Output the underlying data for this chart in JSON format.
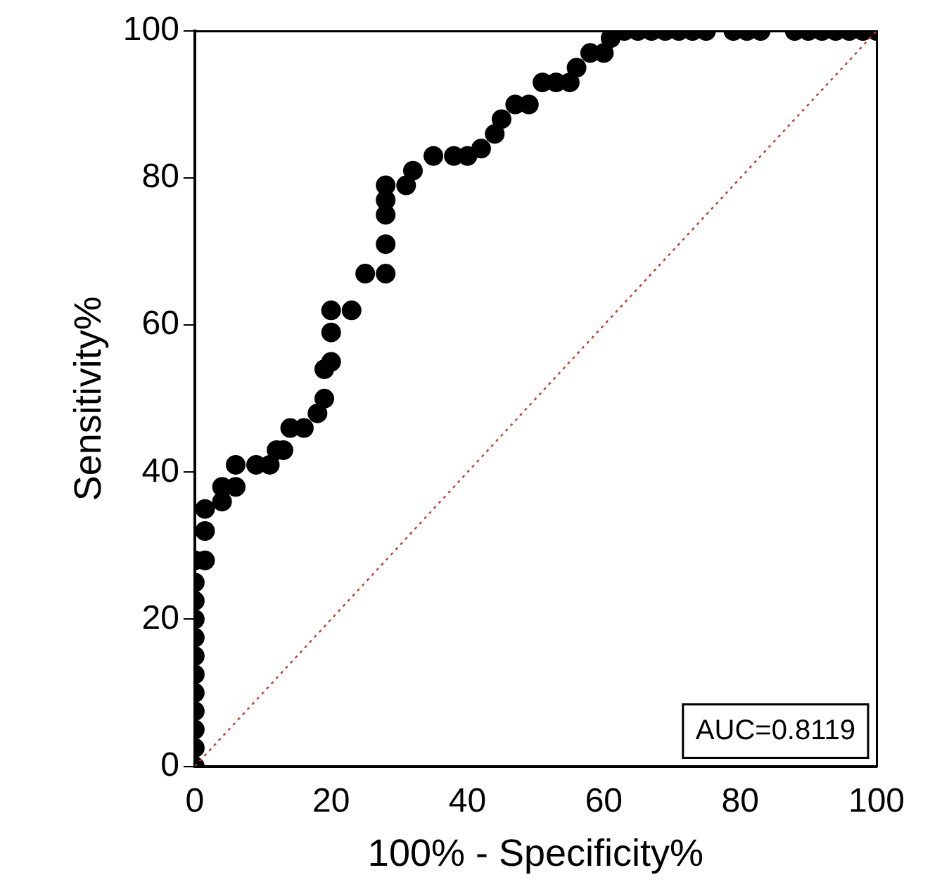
{
  "chart_data": {
    "type": "scatter",
    "xlabel": "100% - Specificity%",
    "ylabel": "Sensitivity%",
    "xlim": [
      0,
      100
    ],
    "ylim": [
      0,
      100
    ],
    "xticks": [
      0,
      20,
      40,
      60,
      80,
      100
    ],
    "yticks": [
      0,
      20,
      40,
      60,
      80,
      100
    ],
    "grid": false,
    "legend": false,
    "annotations": [
      "AUC=0.8119"
    ],
    "series": [
      {
        "color": "#000000",
        "marker": "circle",
        "x": [
          0,
          0,
          0,
          0,
          0,
          0,
          0,
          0,
          0,
          0,
          0,
          0,
          1.5,
          1.5,
          1.5,
          4,
          4,
          6,
          6,
          9,
          11,
          12,
          13,
          14,
          16,
          18,
          19,
          19,
          20,
          20,
          20,
          23,
          25,
          28,
          28,
          28,
          28,
          28,
          31,
          32,
          35,
          38,
          40,
          42,
          44,
          45,
          47,
          49,
          51,
          53,
          55,
          56,
          58,
          60,
          61,
          63,
          65,
          67,
          69,
          71,
          73,
          75,
          79,
          81,
          83,
          88,
          90,
          92,
          94,
          96,
          98,
          100
        ],
        "values": [
          0,
          2.5,
          5,
          7.5,
          10,
          12.5,
          15,
          17.5,
          20,
          22.5,
          25,
          28,
          28,
          32,
          35,
          36,
          38,
          38,
          41,
          41,
          41,
          43,
          43,
          46,
          46,
          48,
          50,
          54,
          55,
          59,
          62,
          62,
          67,
          67,
          71,
          75,
          77,
          79,
          79,
          81,
          83,
          83,
          83,
          84,
          86,
          88,
          90,
          90,
          93,
          93,
          93,
          95,
          97,
          97,
          99,
          100,
          100,
          100,
          100,
          100,
          100,
          100,
          100,
          100,
          100,
          100,
          100,
          100,
          100,
          100,
          100,
          100
        ]
      },
      {
        "type": "line",
        "color": "#c0392b",
        "line_style": "dotted",
        "x": [
          0,
          100
        ],
        "values": [
          0,
          100
        ]
      }
    ]
  }
}
